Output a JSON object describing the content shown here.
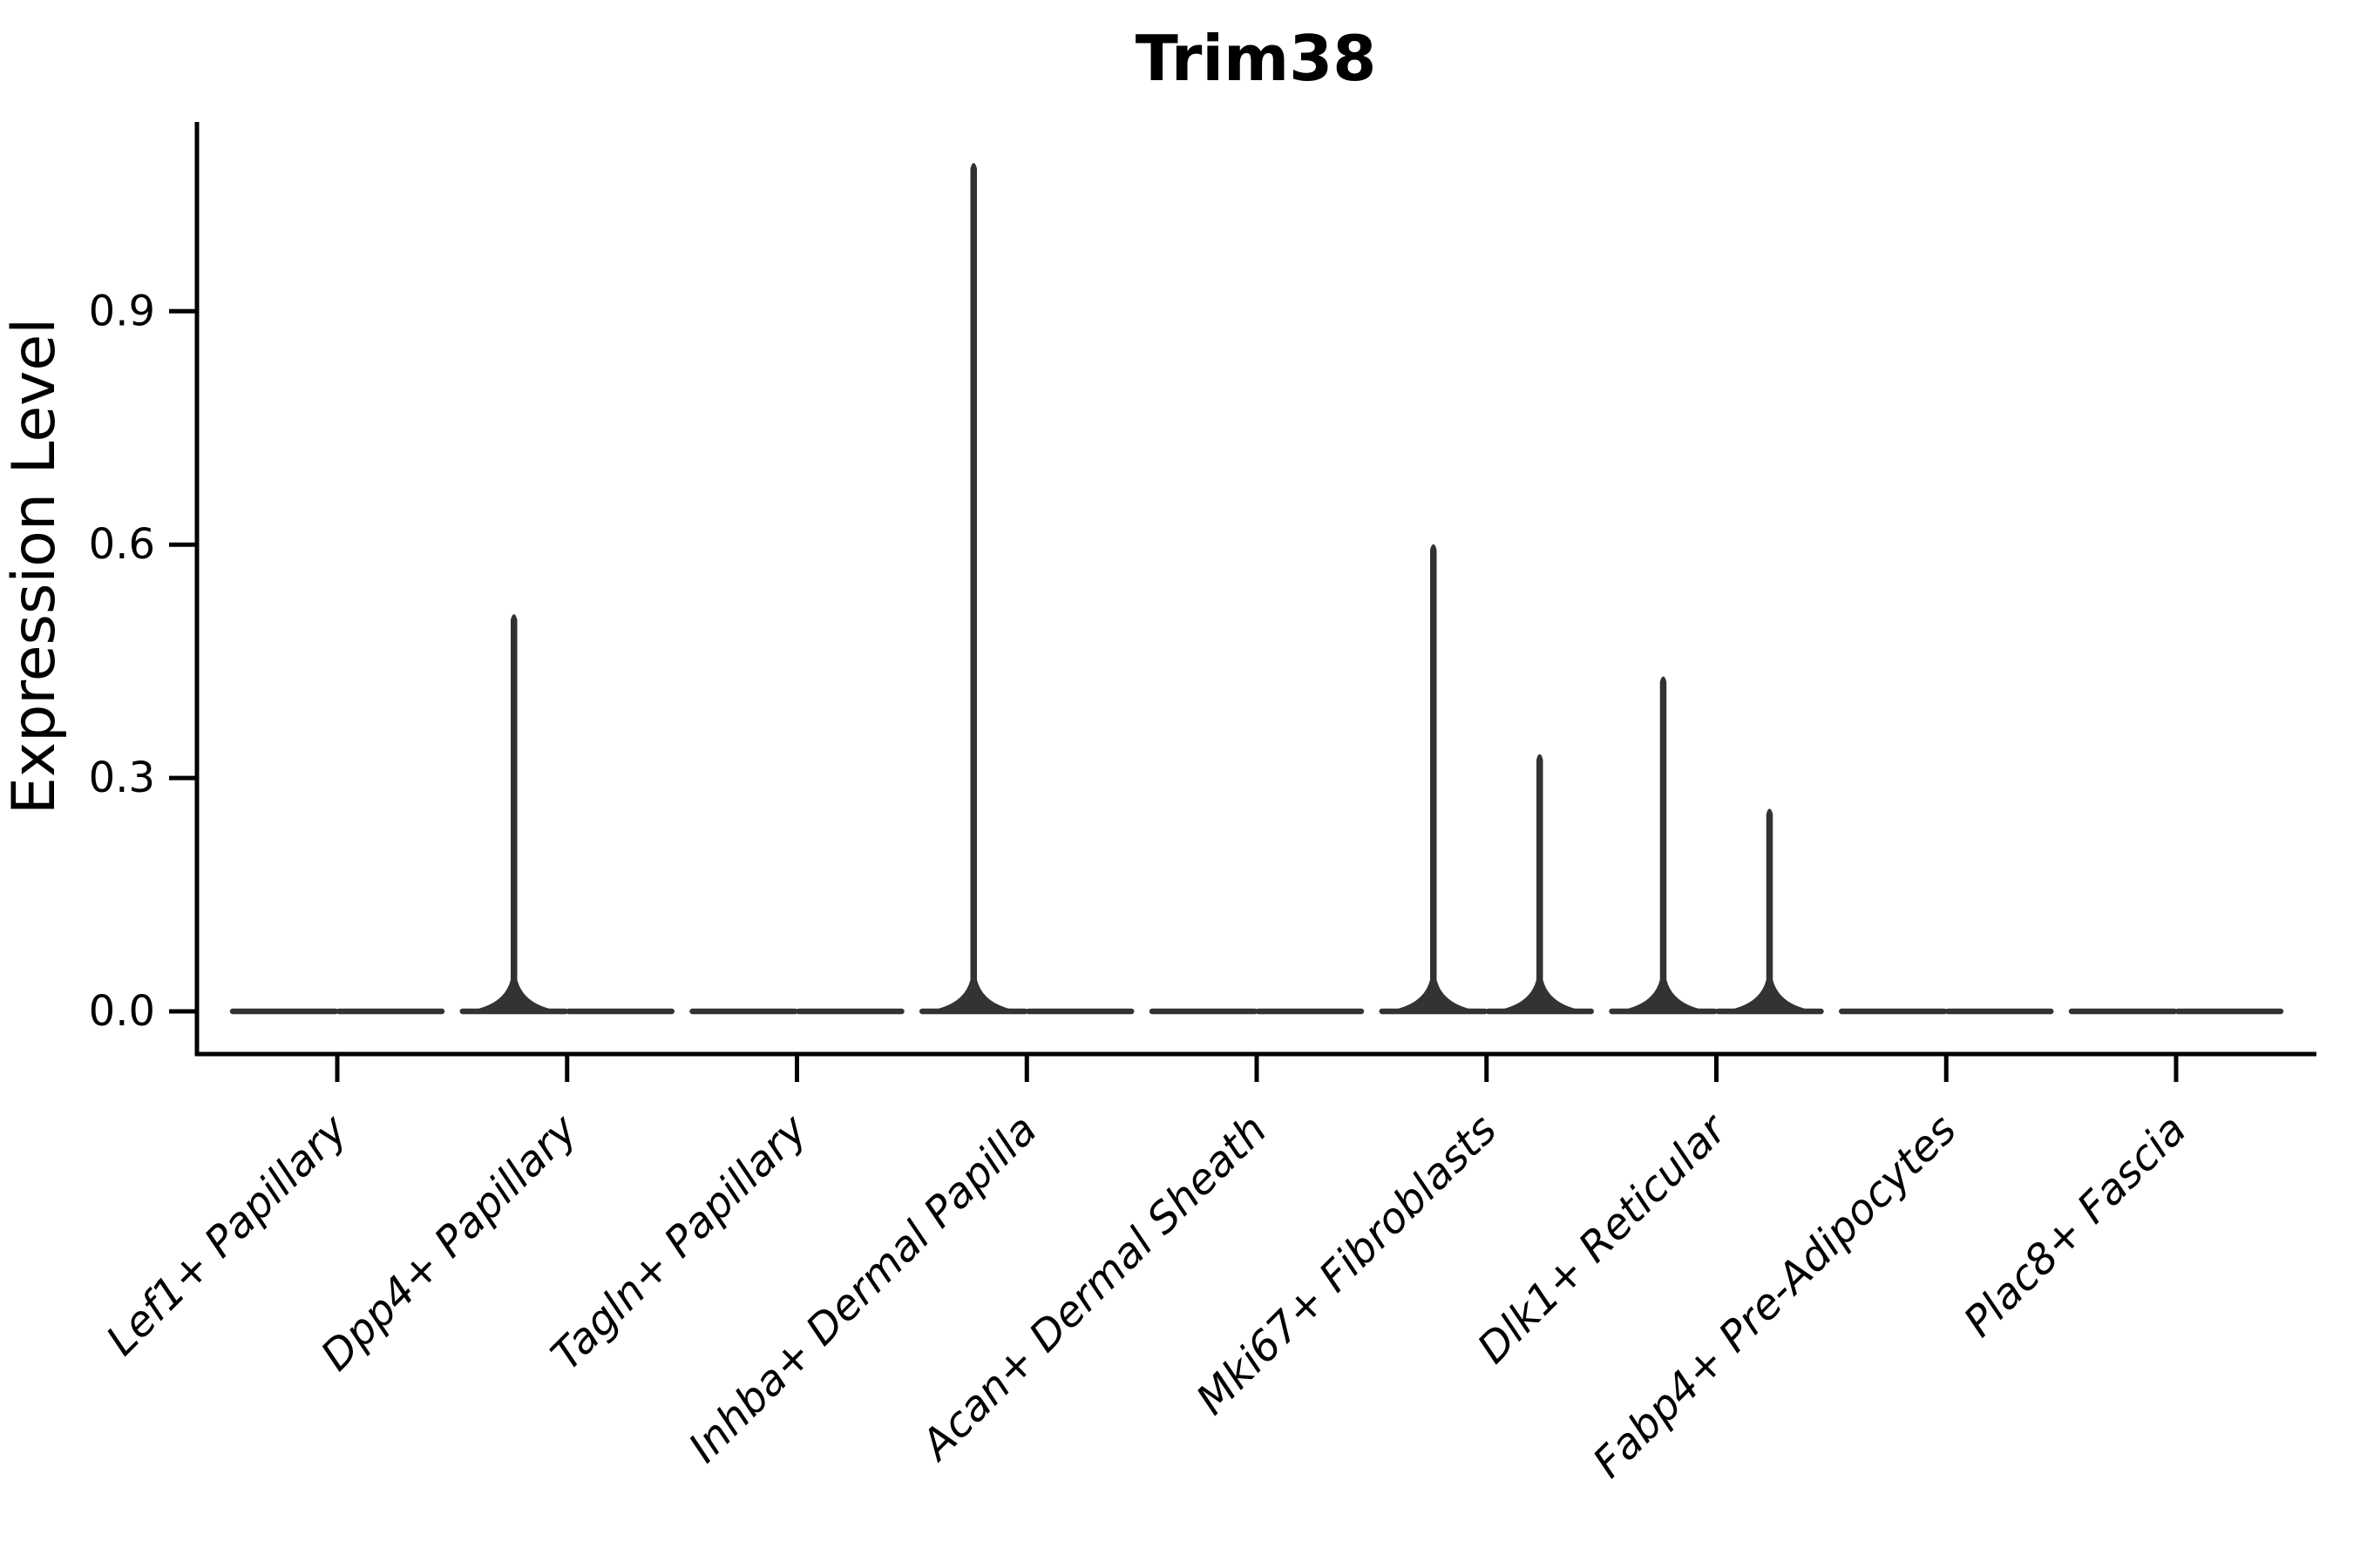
{
  "title": "Trim38",
  "axis": {
    "ylabel": "Expression Level",
    "ytick_labels": [
      "0.0",
      "0.3",
      "0.6",
      "0.9"
    ]
  },
  "colors": {
    "background": "#ffffff",
    "violin_line": "#333333",
    "axis_line": "#000000",
    "text": "#000000"
  },
  "chart_data": {
    "type": "violin",
    "title": "Trim38",
    "xlabel": "",
    "ylabel": "Expression Level",
    "categories": [
      "Lef1+ Papillary",
      "Dpp4+ Papillary",
      "Tagln+ Papillary",
      "Inhba+ Dermal Papilla",
      "Acan+ Dermal Sheath",
      "Mki67+ Fibroblasts",
      "Dlk1+ Reticular",
      "Fabp4+ Pre-Adipocytes",
      "Plac8+ Fascia"
    ],
    "violins_per_category": 2,
    "series": [
      {
        "name": "left-violin",
        "max_values": [
          0,
          0.51,
          0,
          1.09,
          0,
          0.6,
          0.43,
          0,
          0
        ]
      },
      {
        "name": "right-violin",
        "max_values": [
          0,
          0,
          0,
          0,
          0,
          0.33,
          0.26,
          0,
          0
        ]
      }
    ],
    "yticks": [
      0.0,
      0.3,
      0.6,
      0.9
    ],
    "ylim": [
      -0.055,
      1.143
    ],
    "grid": false,
    "legend": "none",
    "shape_note": "nearly all density at 0: violins collapse to flat horizontal lines with thin needle spikes up to the max value"
  }
}
